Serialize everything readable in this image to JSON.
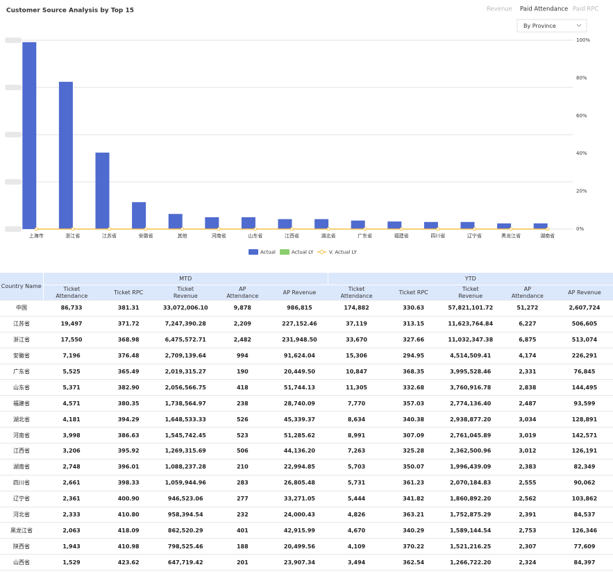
{
  "header": {
    "title": "Customer Source Analysis by Top 15",
    "tabs": [
      "Revenue",
      "Paid Attendance",
      "Paid RPC"
    ],
    "active_tab": 1,
    "dropdown": "By Province"
  },
  "chart_data": {
    "type": "bar",
    "categories": [
      "上海市",
      "浙江省",
      "江苏省",
      "安徽省",
      "其他",
      "河南省",
      "山东省",
      "江西省",
      "湖北省",
      "广东省",
      "福建省",
      "四川省",
      "辽宁省",
      "黑龙江省",
      "湖南省"
    ],
    "series": [
      {
        "name": "Actual",
        "color": "#4f6bcf",
        "values": [
          3.96,
          3.12,
          1.62,
          0.57,
          0.32,
          0.25,
          0.25,
          0.21,
          0.21,
          0.18,
          0.16,
          0.15,
          0.15,
          0.12,
          0.12
        ]
      },
      {
        "name": "Actual LY",
        "color": "#8ccf6e",
        "values": [
          0,
          0,
          0,
          0,
          0,
          0,
          0,
          0,
          0,
          0,
          0,
          0,
          0,
          0,
          0
        ]
      },
      {
        "name": "V. Actual LY",
        "color": "#f5c04a",
        "axis": "y2",
        "values": [
          0,
          0,
          0,
          0,
          0,
          0,
          0,
          0,
          0,
          0,
          0,
          0,
          0,
          0,
          0
        ]
      }
    ],
    "ylim": [
      0,
      4
    ],
    "yticks": [
      0,
      1,
      2,
      3,
      4
    ],
    "y2lim": [
      0,
      100
    ],
    "y2ticks": [
      {
        "value": 0,
        "label": "0%"
      },
      {
        "value": 20,
        "label": "20%"
      },
      {
        "value": 40,
        "label": "40%"
      },
      {
        "value": 60,
        "label": "60%"
      },
      {
        "value": 80,
        "label": "80%"
      },
      {
        "value": 100,
        "label": "100%"
      }
    ],
    "grid": true,
    "legend": "bottom"
  },
  "table": {
    "corner": "Country Name",
    "groups": [
      "MTD",
      "YTD"
    ],
    "columns": [
      "Ticket Attendance",
      "Ticket RPC",
      "Ticket Revenue",
      "AP Attendance",
      "AP Revenue"
    ],
    "rows": [
      [
        "中国",
        "86,733",
        "381.31",
        "33,072,006.10",
        "9,878",
        "986,815",
        "174,882",
        "330.63",
        "57,821,101.72",
        "51,272",
        "2,607,724"
      ],
      [
        "江苏省",
        "19,497",
        "371.72",
        "7,247,390.28",
        "2,209",
        "227,152.46",
        "37,119",
        "313.15",
        "11,623,764.84",
        "6,227",
        "506,605"
      ],
      [
        "浙江省",
        "17,550",
        "368.98",
        "6,475,572.71",
        "2,482",
        "231,948.50",
        "33,670",
        "327.66",
        "11,032,347.38",
        "6,875",
        "513,074"
      ],
      [
        "安徽省",
        "7,196",
        "376.48",
        "2,709,139.64",
        "994",
        "91,624.04",
        "15,306",
        "294.95",
        "4,514,509.41",
        "4,174",
        "226,291"
      ],
      [
        "广东省",
        "5,525",
        "365.49",
        "2,019,315.27",
        "190",
        "20,449.50",
        "10,847",
        "368.35",
        "3,995,528.46",
        "2,331",
        "76,845"
      ],
      [
        "山东省",
        "5,371",
        "382.90",
        "2,056,566.75",
        "418",
        "51,744.13",
        "11,305",
        "332.68",
        "3,760,916.78",
        "2,838",
        "144,495"
      ],
      [
        "福建省",
        "4,571",
        "380.35",
        "1,738,564.97",
        "238",
        "28,740.09",
        "7,770",
        "357.03",
        "2,774,136.40",
        "2,487",
        "93,599"
      ],
      [
        "湖北省",
        "4,181",
        "394.29",
        "1,648,533.33",
        "526",
        "45,339.37",
        "8,634",
        "340.38",
        "2,938,877.20",
        "3,034",
        "128,891"
      ],
      [
        "河南省",
        "3,998",
        "386.63",
        "1,545,742.45",
        "523",
        "51,285.62",
        "8,991",
        "307.09",
        "2,761,045.89",
        "3,019",
        "142,571"
      ],
      [
        "江西省",
        "3,206",
        "395.92",
        "1,269,315.69",
        "506",
        "44,136.20",
        "7,263",
        "325.28",
        "2,362,500.96",
        "3,012",
        "126,191"
      ],
      [
        "湖南省",
        "2,748",
        "396.01",
        "1,088,237.28",
        "210",
        "22,994.85",
        "5,703",
        "350.07",
        "1,996,439.09",
        "2,383",
        "82,349"
      ],
      [
        "四川省",
        "2,661",
        "398.33",
        "1,059,944.96",
        "283",
        "26,805.48",
        "5,731",
        "361.23",
        "2,070,184.83",
        "2,555",
        "90,062"
      ],
      [
        "辽宁省",
        "2,361",
        "400.90",
        "946,523.06",
        "277",
        "33,271.05",
        "5,444",
        "341.82",
        "1,860,892.20",
        "2,562",
        "103,862"
      ],
      [
        "河北省",
        "2,333",
        "410.80",
        "958,394.54",
        "232",
        "24,000.43",
        "4,826",
        "363.21",
        "1,752,875.29",
        "2,391",
        "84,537"
      ],
      [
        "黑龙江省",
        "2,063",
        "418.09",
        "862,520.29",
        "401",
        "42,915.99",
        "4,670",
        "340.29",
        "1,589,144.54",
        "2,753",
        "126,346"
      ],
      [
        "陕西省",
        "1,943",
        "410.98",
        "798,525.46",
        "188",
        "20,499.56",
        "4,109",
        "370.22",
        "1,521,216.25",
        "2,307",
        "77,609"
      ],
      [
        "山西省",
        "1,529",
        "423.62",
        "647,719.42",
        "201",
        "23,907.34",
        "3,494",
        "362.54",
        "1,266,722.20",
        "2,324",
        "84,397"
      ]
    ]
  }
}
